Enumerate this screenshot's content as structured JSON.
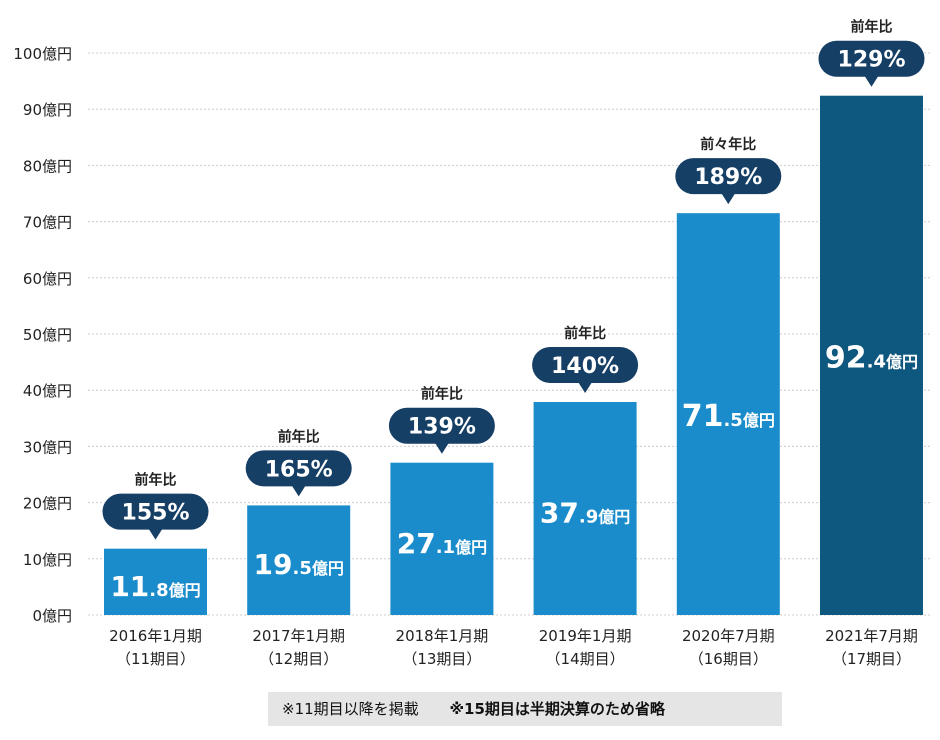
{
  "chart_data": {
    "type": "bar",
    "categories": [
      "2016年1月期",
      "2017年1月期",
      "2018年1月期",
      "2019年1月期",
      "2020年7月期",
      "2021年7月期"
    ],
    "category_sublabels": [
      "（11期目）",
      "（12期目）",
      "（13期目）",
      "（14期目）",
      "（16期目）",
      "（17期目）"
    ],
    "values": [
      11.8,
      19.5,
      27.1,
      37.9,
      71.5,
      92.4
    ],
    "value_labels": [
      {
        "main": "11",
        "decimal": ".8",
        "unit": "億円"
      },
      {
        "main": "19",
        "decimal": ".5",
        "unit": "億円"
      },
      {
        "main": "27",
        "decimal": ".1",
        "unit": "億円"
      },
      {
        "main": "37",
        "decimal": ".9",
        "unit": "億円"
      },
      {
        "main": "71",
        "decimal": ".5",
        "unit": "億円"
      },
      {
        "main": "92",
        "decimal": ".4",
        "unit": "億円"
      }
    ],
    "growth_caption": [
      "前年比",
      "前年比",
      "前年比",
      "前年比",
      "前々年比",
      "前年比"
    ],
    "growth_rate": [
      "155%",
      "165%",
      "139%",
      "140%",
      "189%",
      "129%"
    ],
    "yticks": [
      {
        "value": 0,
        "label": "0億円"
      },
      {
        "value": 10,
        "label": "10億円"
      },
      {
        "value": 20,
        "label": "20億円"
      },
      {
        "value": 30,
        "label": "30億円"
      },
      {
        "value": 40,
        "label": "40億円"
      },
      {
        "value": 50,
        "label": "50億円"
      },
      {
        "value": 60,
        "label": "60億円"
      },
      {
        "value": 70,
        "label": "70億円"
      },
      {
        "value": 80,
        "label": "80億円"
      },
      {
        "value": 90,
        "label": "90億円"
      },
      {
        "value": 100,
        "label": "100億円"
      }
    ],
    "ylim": [
      0,
      100
    ],
    "grid": true,
    "title": "",
    "xlabel": "",
    "ylabel": ""
  },
  "colors": {
    "bar": "#1a8ccb",
    "bar_highlight": "#0e577f",
    "bubble": "#163f66",
    "grid": "#cccccc",
    "text": "#222222"
  },
  "notes": {
    "note1": "※11期目以降を掲載",
    "note2": "※15期目は半期決算のため省略"
  }
}
